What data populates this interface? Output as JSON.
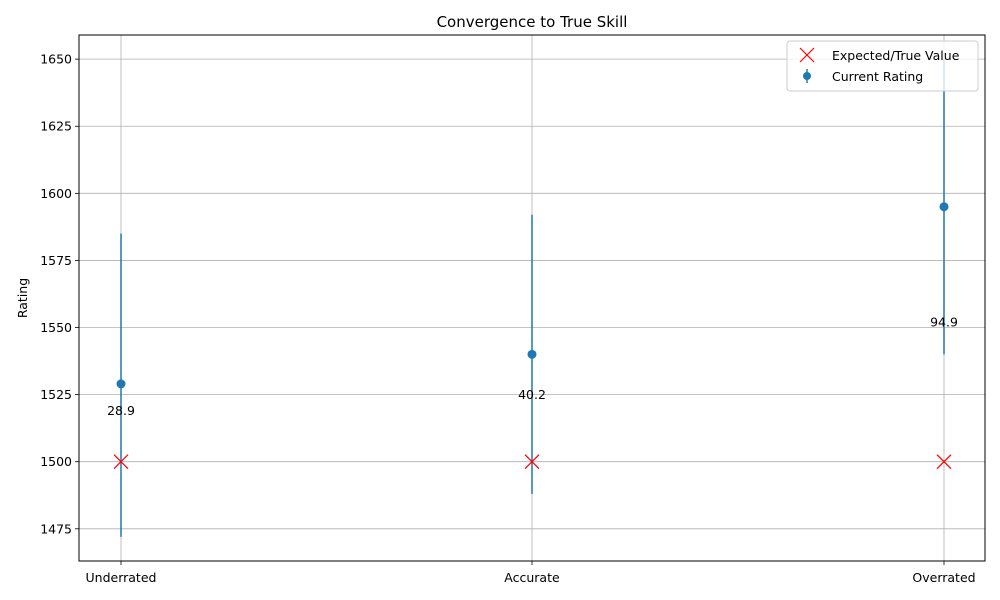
{
  "chart_data": {
    "type": "scatter",
    "title": "Convergence to True Skill",
    "xlabel": "",
    "ylabel": "Rating",
    "categories": [
      "Underrated",
      "Accurate",
      "Overrated"
    ],
    "ylim": [
      1463,
      1659
    ],
    "yticks": [
      1475,
      1500,
      1525,
      1550,
      1575,
      1600,
      1625,
      1650
    ],
    "grid": true,
    "legend_position": "top-right",
    "series": [
      {
        "name": "Current Rating",
        "kind": "errorbar",
        "color": "#1f77b4",
        "marker": "circle",
        "values": [
          1529,
          1540,
          1595
        ],
        "lower": [
          1472,
          1488,
          1540
        ],
        "upper": [
          1585,
          1592,
          1650
        ]
      },
      {
        "name": "Expected/True Value",
        "kind": "marker",
        "color": "#ff0000",
        "marker": "x",
        "values": [
          1500,
          1500,
          1500
        ]
      }
    ],
    "annotations": [
      {
        "category": "Underrated",
        "text": "28.9",
        "y": 1519
      },
      {
        "category": "Accurate",
        "text": "40.2",
        "y": 1525
      },
      {
        "category": "Overrated",
        "text": "94.9",
        "y": 1552
      }
    ]
  }
}
